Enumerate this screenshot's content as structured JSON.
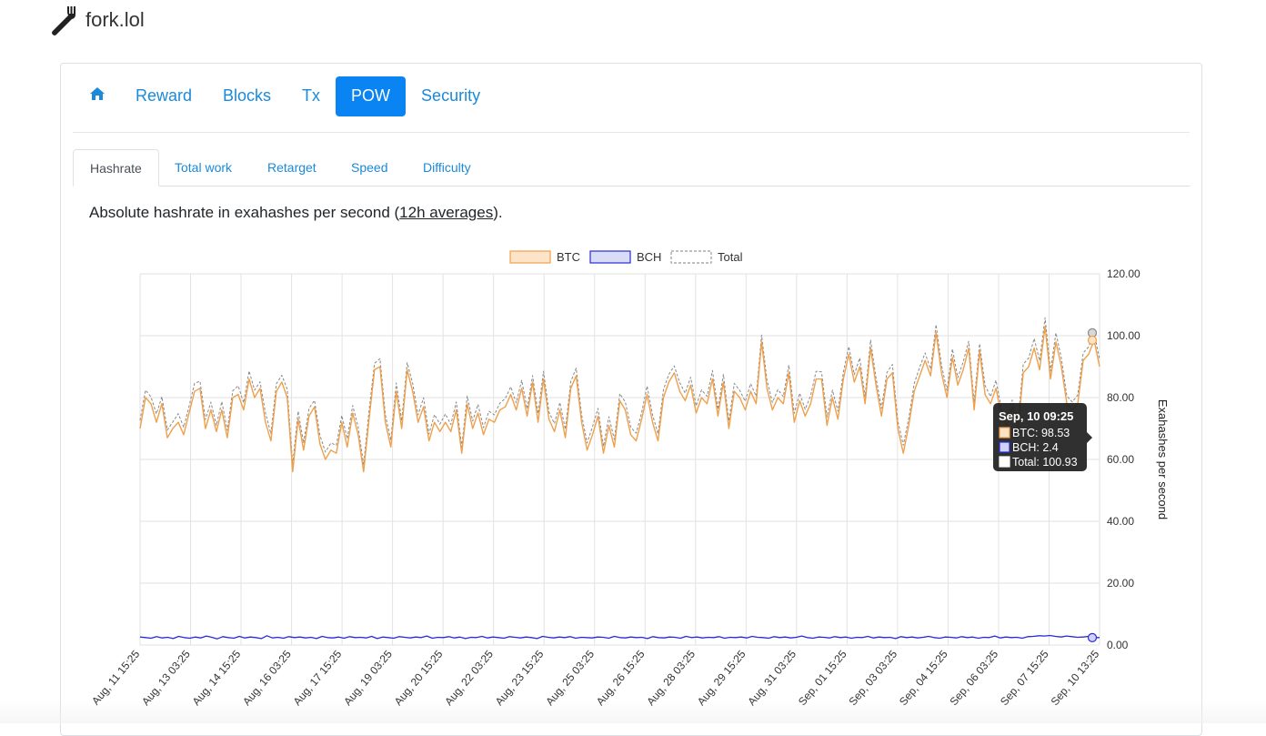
{
  "brand": {
    "name": "fork.lol",
    "icon": "fork-icon"
  },
  "nav": {
    "home_icon": "home-icon",
    "items": [
      {
        "label": "Reward",
        "active": false
      },
      {
        "label": "Blocks",
        "active": false
      },
      {
        "label": "Tx",
        "active": false
      },
      {
        "label": "POW",
        "active": true
      },
      {
        "label": "Security",
        "active": false
      }
    ]
  },
  "tabs": [
    {
      "label": "Hashrate",
      "active": true
    },
    {
      "label": "Total work",
      "active": false
    },
    {
      "label": "Retarget",
      "active": false
    },
    {
      "label": "Speed",
      "active": false
    },
    {
      "label": "Difficulty",
      "active": false
    }
  ],
  "description": {
    "text_before": "Absolute hashrate in exahashes per second (",
    "link": "12h averages",
    "text_after": ")."
  },
  "colors": {
    "accent": "#0a84f2",
    "link": "#1a8ad9",
    "btc": "#f0a04b",
    "bch": "#2a2ad6",
    "total": "#888888"
  },
  "chart_data": {
    "type": "line",
    "ylabel": "Exahashes per second",
    "ylim": [
      0,
      120
    ],
    "yticks": [
      "0.00",
      "20.00",
      "40.00",
      "60.00",
      "80.00",
      "100.00",
      "120.00"
    ],
    "grid": true,
    "legend": "top",
    "xticks": [
      "Aug, 11 15:25",
      "Aug, 13 03:25",
      "Aug, 14 15:25",
      "Aug, 16 03:25",
      "Aug, 17 15:25",
      "Aug, 19 03:25",
      "Aug, 20 15:25",
      "Aug, 22 03:25",
      "Aug, 23 15:25",
      "Aug, 25 03:25",
      "Aug, 26 15:25",
      "Aug, 28 03:25",
      "Aug, 29 15:25",
      "Aug, 31 03:25",
      "Sep, 01 15:25",
      "Sep, 03 03:25",
      "Sep, 04 15:25",
      "Sep, 06 03:25",
      "Sep, 07 15:25",
      "Sep, 10 13:25"
    ],
    "series": [
      {
        "name": "BTC",
        "values": [
          70,
          80,
          78,
          72,
          78,
          67,
          70,
          72,
          68,
          75,
          82,
          83,
          70,
          76,
          69,
          76,
          67,
          80,
          81,
          76,
          86,
          80,
          83,
          72,
          66,
          82,
          85,
          80,
          56,
          73,
          63,
          74,
          77,
          65,
          60,
          63,
          62,
          72,
          64,
          75,
          68,
          56,
          73,
          89,
          90,
          72,
          64,
          82,
          70,
          89,
          82,
          72,
          77,
          66,
          72,
          69,
          72,
          69,
          76,
          62,
          78,
          70,
          75,
          68,
          73,
          72,
          76,
          77,
          81,
          76,
          83,
          74,
          85,
          72,
          86,
          73,
          69,
          76,
          67,
          83,
          87,
          72,
          63,
          68,
          74,
          62,
          71,
          64,
          79,
          76,
          68,
          66,
          73,
          81,
          72,
          66,
          80,
          85,
          88,
          82,
          79,
          84,
          75,
          80,
          78,
          86,
          74,
          85,
          70,
          82,
          80,
          76,
          82,
          78,
          98,
          83,
          76,
          80,
          78,
          88,
          72,
          79,
          74,
          78,
          86,
          86,
          71,
          80,
          73,
          86,
          94,
          85,
          90,
          78,
          96,
          84,
          74,
          86,
          88,
          70,
          62,
          71,
          82,
          87,
          92,
          87,
          101,
          88,
          80,
          93,
          84,
          89,
          96,
          76,
          95,
          81,
          78,
          83,
          74,
          71,
          77,
          69,
          88,
          90,
          96,
          89,
          103,
          86,
          98,
          90,
          78,
          76,
          78,
          92,
          94,
          98.53,
          90
        ]
      },
      {
        "name": "BCH",
        "values": [
          2.6,
          2.4,
          2.2,
          2.7,
          2.3,
          2.5,
          2.1,
          2.8,
          2.4,
          2.2,
          2.6,
          2.3,
          2.9,
          2.5,
          2.0,
          2.7,
          2.4,
          2.2,
          2.8,
          2.3,
          2.6,
          2.4,
          2.1,
          3.0,
          2.3,
          2.5,
          2.2,
          2.7,
          2.4,
          2.6,
          2.3,
          2.5,
          2.1,
          2.8,
          2.4,
          2.3,
          2.6,
          2.2,
          2.7,
          2.4,
          2.5,
          2.3,
          2.8,
          2.1,
          2.6,
          2.4,
          2.2,
          2.7,
          2.5,
          2.3,
          2.6,
          2.4,
          2.9,
          2.2,
          2.5,
          2.4,
          2.7,
          2.3,
          2.6,
          2.1,
          2.5,
          2.4,
          2.8,
          2.3,
          2.6,
          2.4,
          2.2,
          2.7,
          2.5,
          2.3,
          2.6,
          2.4,
          2.1,
          2.8,
          2.5,
          2.3,
          2.6,
          2.4,
          2.7,
          2.2,
          2.5,
          2.4,
          2.3,
          2.6,
          2.5,
          2.2,
          2.8,
          2.4,
          2.3,
          2.6,
          2.4,
          2.5,
          2.1,
          2.7,
          2.4,
          2.3,
          2.6,
          2.5,
          2.2,
          2.8,
          2.4,
          2.6,
          2.3,
          2.5,
          2.4,
          2.7,
          2.2,
          2.5,
          2.4,
          2.6,
          2.3,
          2.8,
          2.5,
          2.4,
          2.2,
          2.7,
          2.4,
          2.6,
          2.3,
          2.5,
          2.9,
          2.4,
          2.2,
          2.6,
          2.5,
          2.3,
          2.7,
          2.4,
          2.6,
          2.2,
          2.5,
          2.4,
          2.8,
          2.3,
          2.6,
          2.4,
          2.5,
          2.1,
          2.7,
          2.4,
          2.6,
          2.3,
          2.5,
          2.8,
          2.4,
          2.2,
          2.6,
          2.5,
          2.3,
          2.7,
          2.4,
          2.6,
          2.2,
          2.5,
          2.4,
          2.9,
          2.3,
          2.6,
          2.4,
          2.5,
          2.2,
          2.7,
          2.8,
          3.0,
          2.9,
          3.1,
          2.8,
          2.6,
          2.9,
          2.7,
          2.5,
          2.6,
          2.8,
          2.4,
          2.4
        ]
      },
      {
        "name": "Total",
        "values": [
          72.6,
          82.4,
          80.2,
          74.7,
          80.3,
          69.5,
          72.1,
          74.8,
          70.4,
          77.2,
          84.6,
          85.3,
          72.9,
          78.5,
          71.0,
          78.7,
          69.4,
          82.2,
          83.8,
          78.3,
          88.6,
          82.4,
          85.1,
          75.0,
          68.3,
          84.5,
          87.2,
          82.7,
          58.4,
          75.6,
          65.3,
          76.5,
          79.1,
          67.8,
          62.4,
          65.3,
          64.6,
          74.2,
          66.7,
          77.4,
          70.5,
          58.3,
          75.8,
          91.1,
          92.6,
          74.4,
          66.2,
          84.7,
          72.5,
          91.3,
          84.6,
          74.4,
          79.9,
          68.2,
          74.5,
          71.4,
          74.7,
          71.3,
          78.6,
          64.1,
          80.5,
          72.4,
          77.8,
          70.3,
          75.6,
          74.4,
          78.2,
          79.7,
          83.5,
          78.3,
          85.6,
          76.4,
          87.1,
          74.8,
          88.5,
          75.3,
          71.6,
          78.4,
          69.7,
          85.2,
          89.5,
          74.4,
          65.3,
          70.6,
          76.5,
          64.2,
          73.8,
          66.4,
          81.3,
          78.6,
          70.4,
          68.5,
          75.1,
          83.7,
          74.4,
          68.3,
          82.6,
          87.5,
          90.2,
          84.8,
          81.4,
          86.6,
          77.3,
          82.5,
          80.4,
          88.7,
          76.2,
          87.5,
          72.4,
          84.6,
          82.3,
          78.8,
          84.5,
          80.4,
          100.2,
          85.7,
          78.4,
          82.6,
          80.3,
          90.5,
          74.9,
          81.4,
          76.2,
          80.6,
          88.5,
          88.3,
          73.7,
          82.4,
          75.6,
          88.2,
          96.5,
          87.4,
          92.8,
          80.3,
          98.6,
          86.4,
          76.5,
          88.1,
          90.7,
          72.4,
          64.6,
          73.3,
          84.5,
          89.8,
          94.4,
          89.2,
          103.6,
          90.5,
          82.3,
          95.7,
          86.4,
          91.6,
          98.2,
          78.5,
          97.4,
          83.9,
          80.3,
          85.6,
          76.4,
          73.5,
          79.2,
          71.7,
          90.8,
          92.8,
          99.1,
          91.9,
          105.8,
          88.6,
          100.9,
          92.7,
          80.5,
          78.6,
          80.8,
          94.4,
          96.4,
          100.93,
          92.4
        ]
      }
    ],
    "tooltip": {
      "title": "Sep, 10 09:25",
      "lines": [
        "BTC: 98.53",
        "BCH: 2.4",
        "Total: 100.93"
      ]
    }
  }
}
